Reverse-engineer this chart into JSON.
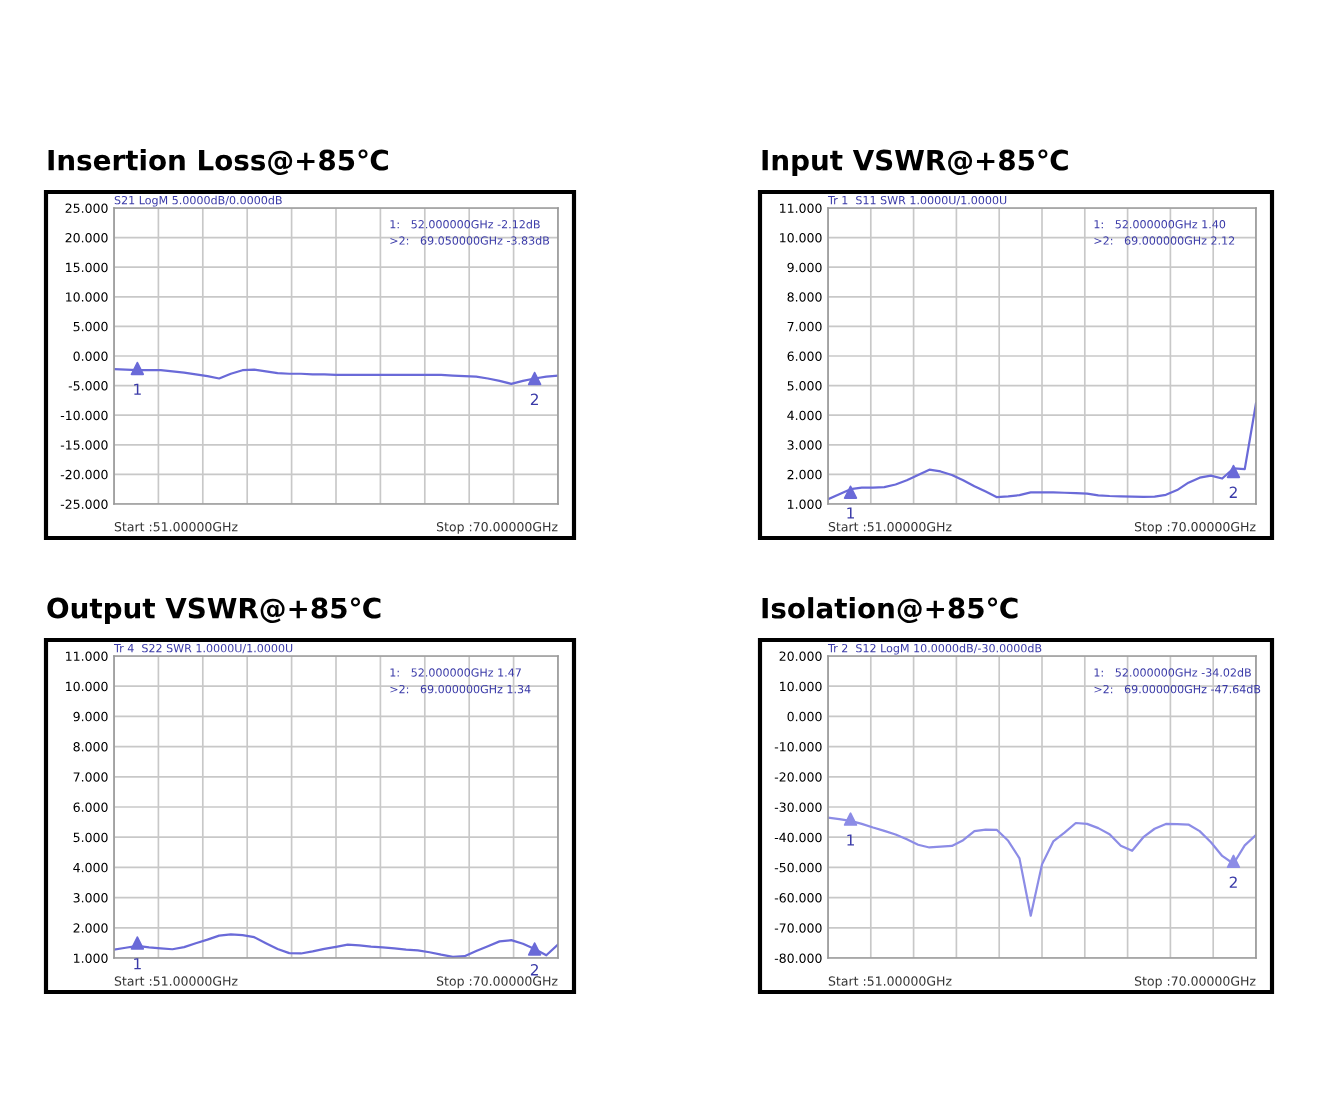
{
  "chart_data": [
    {
      "type": "line",
      "title": "Insertion Loss@+85℃",
      "categories": [
        null,
        null,
        null,
        null,
        null,
        null,
        null,
        null,
        null,
        null,
        null,
        null,
        null,
        null,
        null,
        null,
        null,
        null,
        null,
        null,
        null,
        null,
        null,
        null,
        null,
        null,
        null,
        null,
        null,
        null,
        null,
        null,
        null,
        null,
        null,
        null,
        null,
        null,
        null
      ],
      "series": [
        {
          "color": "#6a6ad8",
          "values": [
            -2.2,
            -2.3,
            -2.4,
            -2.4,
            -2.4,
            -2.6,
            -2.8,
            -3.1,
            -3.4,
            -3.8,
            -3.0,
            -2.4,
            -2.3,
            -2.6,
            -2.9,
            -3.0,
            -3.0,
            -3.1,
            -3.1,
            -3.2,
            -3.2,
            -3.2,
            -3.2,
            -3.2,
            -3.2,
            -3.2,
            -3.2,
            -3.2,
            -3.2,
            -3.3,
            -3.4,
            -3.5,
            -3.8,
            -4.2,
            -4.7,
            -4.2,
            -3.8,
            -3.5,
            -3.3
          ]
        },
        {
          "type": "scatter",
          "color": "#6a6ad8",
          "marker": "triangle",
          "values": [
            null,
            null,
            -2.1,
            null,
            null,
            null,
            null,
            null,
            null,
            null,
            null,
            null,
            null,
            null,
            null,
            null,
            null,
            null,
            null,
            null,
            null,
            null,
            null,
            null,
            null,
            null,
            null,
            null,
            null,
            null,
            null,
            null,
            null,
            null,
            null,
            null,
            -3.8,
            null,
            null
          ]
        }
      ],
      "ylim": [
        -25,
        25
      ],
      "yticks": [
        {
          "value": 25,
          "label": "25.000"
        },
        {
          "value": 20,
          "label": "20.000"
        },
        {
          "value": 15,
          "label": "15.000"
        },
        {
          "value": 10,
          "label": "10.000"
        },
        {
          "value": 5,
          "label": "5.000"
        },
        {
          "value": 0,
          "label": "0.000"
        },
        {
          "value": -5,
          "label": "-5.000"
        },
        {
          "value": -10,
          "label": "-10.000"
        },
        {
          "value": -15,
          "label": "-15.000"
        },
        {
          "value": -20,
          "label": "-20.000"
        },
        {
          "value": -25,
          "label": "-25.000"
        }
      ],
      "grid": true,
      "tick_labels": "y",
      "annotations": [
        "S21 LogM 5.0000dB/0.0000dB",
        "1:   52.000000GHz -2.12dB",
        ">2:   69.050000GHz -3.83dB",
        "Start :51.00000GHz",
        "Stop :70.00000GHz",
        "1",
        "2"
      ]
    },
    {
      "type": "line",
      "title": "Input VSWR@+85℃",
      "categories": [
        null,
        null,
        null,
        null,
        null,
        null,
        null,
        null,
        null,
        null,
        null,
        null,
        null,
        null,
        null,
        null,
        null,
        null,
        null,
        null,
        null,
        null,
        null,
        null,
        null,
        null,
        null,
        null,
        null,
        null,
        null,
        null,
        null,
        null,
        null,
        null,
        null,
        null,
        null
      ],
      "series": [
        {
          "color": "#6a6ad8",
          "values": [
            1.16,
            1.33,
            1.5,
            1.55,
            1.55,
            1.57,
            1.66,
            1.8,
            1.98,
            2.16,
            2.1,
            1.98,
            1.8,
            1.6,
            1.42,
            1.23,
            1.26,
            1.3,
            1.39,
            1.39,
            1.39,
            1.38,
            1.37,
            1.35,
            1.29,
            1.27,
            1.26,
            1.25,
            1.24,
            1.25,
            1.31,
            1.47,
            1.72,
            1.89,
            1.96,
            1.86,
            2.2,
            2.18,
            4.4
          ]
        },
        {
          "type": "scatter",
          "color": "#6a6ad8",
          "marker": "triangle",
          "values": [
            null,
            null,
            1.4,
            null,
            null,
            null,
            null,
            null,
            null,
            null,
            null,
            null,
            null,
            null,
            null,
            null,
            null,
            null,
            null,
            null,
            null,
            null,
            null,
            null,
            null,
            null,
            null,
            null,
            null,
            null,
            null,
            null,
            null,
            null,
            null,
            null,
            2.1,
            null,
            null
          ]
        }
      ],
      "ylim": [
        1,
        11
      ],
      "yticks": [
        {
          "value": 11,
          "label": "11.000"
        },
        {
          "value": 10,
          "label": "10.000"
        },
        {
          "value": 9,
          "label": "9.000"
        },
        {
          "value": 8,
          "label": "8.000"
        },
        {
          "value": 7,
          "label": "7.000"
        },
        {
          "value": 6,
          "label": "6.000"
        },
        {
          "value": 5,
          "label": "5.000"
        },
        {
          "value": 4,
          "label": "4.000"
        },
        {
          "value": 3,
          "label": "3.000"
        },
        {
          "value": 2,
          "label": "2.000"
        },
        {
          "value": 1,
          "label": "1.000"
        }
      ],
      "grid": true,
      "tick_labels": "y",
      "annotations": [
        "Tr 1  S11 SWR 1.0000U/1.0000U",
        "1:   52.000000GHz 1.40",
        ">2:   69.000000GHz 2.12",
        "Start :51.00000GHz",
        "Stop :70.00000GHz",
        "1",
        "2"
      ]
    },
    {
      "type": "line",
      "title": "Output VSWR@+85℃",
      "categories": [
        null,
        null,
        null,
        null,
        null,
        null,
        null,
        null,
        null,
        null,
        null,
        null,
        null,
        null,
        null,
        null,
        null,
        null,
        null,
        null,
        null,
        null,
        null,
        null,
        null,
        null,
        null,
        null,
        null,
        null,
        null,
        null,
        null,
        null,
        null,
        null,
        null,
        null,
        null
      ],
      "series": [
        {
          "color": "#6a6ad8",
          "values": [
            1.28,
            1.34,
            1.4,
            1.35,
            1.32,
            1.29,
            1.36,
            1.49,
            1.61,
            1.74,
            1.78,
            1.76,
            1.69,
            1.49,
            1.3,
            1.16,
            1.15,
            1.22,
            1.3,
            1.37,
            1.44,
            1.42,
            1.38,
            1.35,
            1.32,
            1.28,
            1.25,
            1.19,
            1.11,
            1.04,
            1.06,
            1.23,
            1.39,
            1.55,
            1.59,
            1.47,
            1.3,
            1.09,
            1.45
          ]
        },
        {
          "type": "scatter",
          "color": "#6a6ad8",
          "marker": "triangle",
          "values": [
            null,
            null,
            1.5,
            null,
            null,
            null,
            null,
            null,
            null,
            null,
            null,
            null,
            null,
            null,
            null,
            null,
            null,
            null,
            null,
            null,
            null,
            null,
            null,
            null,
            null,
            null,
            null,
            null,
            null,
            null,
            null,
            null,
            null,
            null,
            null,
            null,
            1.3,
            null,
            null
          ]
        }
      ],
      "ylim": [
        1,
        11
      ],
      "yticks": [
        {
          "value": 11,
          "label": "11.000"
        },
        {
          "value": 10,
          "label": "10.000"
        },
        {
          "value": 9,
          "label": "9.000"
        },
        {
          "value": 8,
          "label": "8.000"
        },
        {
          "value": 7,
          "label": "7.000"
        },
        {
          "value": 6,
          "label": "6.000"
        },
        {
          "value": 5,
          "label": "5.000"
        },
        {
          "value": 4,
          "label": "4.000"
        },
        {
          "value": 3,
          "label": "3.000"
        },
        {
          "value": 2,
          "label": "2.000"
        },
        {
          "value": 1,
          "label": "1.000"
        }
      ],
      "grid": true,
      "tick_labels": "y",
      "annotations": [
        "Tr 4  S22 SWR 1.0000U/1.0000U",
        "1:   52.000000GHz 1.47",
        ">2:   69.000000GHz 1.34",
        "Start :51.00000GHz",
        "Stop :70.00000GHz",
        "1",
        "2"
      ]
    },
    {
      "type": "line",
      "title": "Isolation@+85℃",
      "categories": [
        null,
        null,
        null,
        null,
        null,
        null,
        null,
        null,
        null,
        null,
        null,
        null,
        null,
        null,
        null,
        null,
        null,
        null,
        null,
        null,
        null,
        null,
        null,
        null,
        null,
        null,
        null,
        null,
        null,
        null,
        null,
        null,
        null,
        null,
        null,
        null,
        null,
        null,
        null
      ],
      "series": [
        {
          "color": "#8c8ce6",
          "values": [
            -33.5,
            -34.0,
            -34.6,
            -35.6,
            -36.8,
            -37.9,
            -39.1,
            -40.7,
            -42.5,
            -43.4,
            -43.1,
            -42.9,
            -41.0,
            -38.0,
            -37.5,
            -37.6,
            -41.2,
            -47,
            -66,
            -49,
            -41.4,
            -38.5,
            -35.3,
            -35.6,
            -37.0,
            -39.0,
            -42.8,
            -44.5,
            -40.0,
            -37.2,
            -35.6,
            -35.7,
            -35.8,
            -38.0,
            -41.7,
            -46.2,
            -48.8,
            -42.7,
            -39.3
          ]
        },
        {
          "type": "scatter",
          "color": "#8c8ce6",
          "marker": "triangle",
          "values": [
            null,
            null,
            -34,
            null,
            null,
            null,
            null,
            null,
            null,
            null,
            null,
            null,
            null,
            null,
            null,
            null,
            null,
            null,
            null,
            null,
            null,
            null,
            null,
            null,
            null,
            null,
            null,
            null,
            null,
            null,
            null,
            null,
            null,
            null,
            null,
            null,
            -48,
            null,
            null
          ]
        }
      ],
      "ylim": [
        -80,
        20
      ],
      "yticks": [
        {
          "value": 20,
          "label": "20.000"
        },
        {
          "value": 10,
          "label": "10.000"
        },
        {
          "value": 0,
          "label": "0.000"
        },
        {
          "value": -10,
          "label": "-10.000"
        },
        {
          "value": -20,
          "label": "-20.000"
        },
        {
          "value": -30,
          "label": "-30.000"
        },
        {
          "value": -40,
          "label": "-40.000"
        },
        {
          "value": -50,
          "label": "-50.000"
        },
        {
          "value": -60,
          "label": "-60.000"
        },
        {
          "value": -70,
          "label": "-70.000"
        },
        {
          "value": -80,
          "label": "-80.000"
        }
      ],
      "grid": true,
      "tick_labels": "y",
      "annotations": [
        "Tr 2  S12 LogM 10.0000dB/-30.0000dB",
        "1:   52.000000GHz -34.02dB",
        ">2:   69.000000GHz -47.64dB",
        "Start :51.00000GHz",
        "Stop :70.00000GHz",
        "1",
        "2"
      ]
    }
  ]
}
